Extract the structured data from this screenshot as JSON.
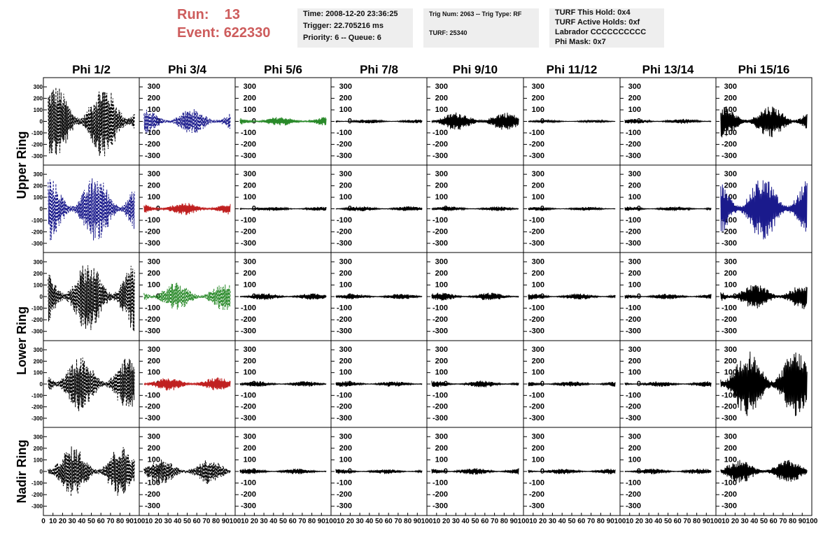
{
  "header": {
    "run_label": "Run:",
    "run_value": "13",
    "event_label": "Event:",
    "event_value": "622330",
    "time": "Time: 2008-12-20 23:36:25",
    "trigger": "Trigger: 22.705216 ms",
    "priority": "Priority: 6 -- Queue: 6",
    "trig_num": "Trig Num: 2063 -- Trig Type: RF",
    "turf": "TURF: 25340",
    "turf_hold": "TURF This Hold: 0x4",
    "turf_active": "TURF Active Holds: 0xf",
    "labrador": "Labrador CCCCCCCCCC",
    "phi_mask": "Phi Mask: 0x7"
  },
  "colors": {
    "black": "#000000",
    "blue": "#1a1a8c",
    "green": "#2a8a2a",
    "red": "#c02020",
    "title": "#cd5c5c"
  },
  "chart_data": {
    "type": "line",
    "columns": [
      "Phi 1/2",
      "Phi 3/4",
      "Phi 5/6",
      "Phi 7/8",
      "Phi 9/10",
      "Phi 11/12",
      "Phi 13/14",
      "Phi 15/16"
    ],
    "ring_labels": [
      "Upper Ring",
      "Lower Ring",
      "Nadir Ring"
    ],
    "xlim": [
      0,
      100
    ],
    "ylim": [
      -380,
      380
    ],
    "x_ticks": [
      0,
      10,
      20,
      30,
      40,
      50,
      60,
      70,
      80,
      90,
      100
    ],
    "y_ticks": [
      -300,
      -200,
      -100,
      0,
      100,
      200,
      300
    ],
    "panels": [
      [
        {
          "color": "black",
          "style": "dashed",
          "amplitude": 320
        },
        {
          "color": "blue",
          "style": "dashed",
          "amplitude": 110
        },
        {
          "color": "green",
          "style": "solid",
          "amplitude": 40
        },
        {
          "color": "black",
          "style": "solid",
          "amplitude": 18
        },
        {
          "color": "black",
          "style": "solid",
          "amplitude": 80
        },
        {
          "color": "black",
          "style": "solid",
          "amplitude": 12
        },
        {
          "color": "black",
          "style": "solid",
          "amplitude": 22
        },
        {
          "color": "black",
          "style": "solid",
          "amplitude": 140
        }
      ],
      [
        {
          "color": "blue",
          "style": "dashed",
          "amplitude": 290
        },
        {
          "color": "red",
          "style": "solid",
          "amplitude": 55
        },
        {
          "color": "black",
          "style": "solid",
          "amplitude": 18
        },
        {
          "color": "black",
          "style": "solid",
          "amplitude": 22
        },
        {
          "color": "black",
          "style": "solid",
          "amplitude": 20
        },
        {
          "color": "black",
          "style": "solid",
          "amplitude": 16
        },
        {
          "color": "black",
          "style": "solid",
          "amplitude": 20
        },
        {
          "color": "blue",
          "style": "solid",
          "amplitude": 280
        }
      ],
      [
        {
          "color": "black",
          "style": "dashed",
          "amplitude": 310
        },
        {
          "color": "green",
          "style": "dashed",
          "amplitude": 120
        },
        {
          "color": "black",
          "style": "solid",
          "amplitude": 30
        },
        {
          "color": "black",
          "style": "solid",
          "amplitude": 25
        },
        {
          "color": "black",
          "style": "solid",
          "amplitude": 35
        },
        {
          "color": "black",
          "style": "solid",
          "amplitude": 28
        },
        {
          "color": "black",
          "style": "solid",
          "amplitude": 25
        },
        {
          "color": "black",
          "style": "solid",
          "amplitude": 110
        }
      ],
      [
        {
          "color": "black",
          "style": "dashed",
          "amplitude": 240
        },
        {
          "color": "red",
          "style": "solid",
          "amplitude": 60
        },
        {
          "color": "black",
          "style": "solid",
          "amplitude": 25
        },
        {
          "color": "black",
          "style": "solid",
          "amplitude": 25
        },
        {
          "color": "black",
          "style": "solid",
          "amplitude": 30
        },
        {
          "color": "black",
          "style": "solid",
          "amplitude": 25
        },
        {
          "color": "black",
          "style": "solid",
          "amplitude": 25
        },
        {
          "color": "black",
          "style": "solid",
          "amplitude": 300
        }
      ],
      [
        {
          "color": "black",
          "style": "dashed",
          "amplitude": 220
        },
        {
          "color": "black",
          "style": "dashed",
          "amplitude": 110
        },
        {
          "color": "black",
          "style": "solid",
          "amplitude": 25
        },
        {
          "color": "black",
          "style": "solid",
          "amplitude": 22
        },
        {
          "color": "black",
          "style": "solid",
          "amplitude": 30
        },
        {
          "color": "black",
          "style": "solid",
          "amplitude": 25
        },
        {
          "color": "black",
          "style": "solid",
          "amplitude": 25
        },
        {
          "color": "black",
          "style": "solid",
          "amplitude": 100
        }
      ]
    ]
  }
}
